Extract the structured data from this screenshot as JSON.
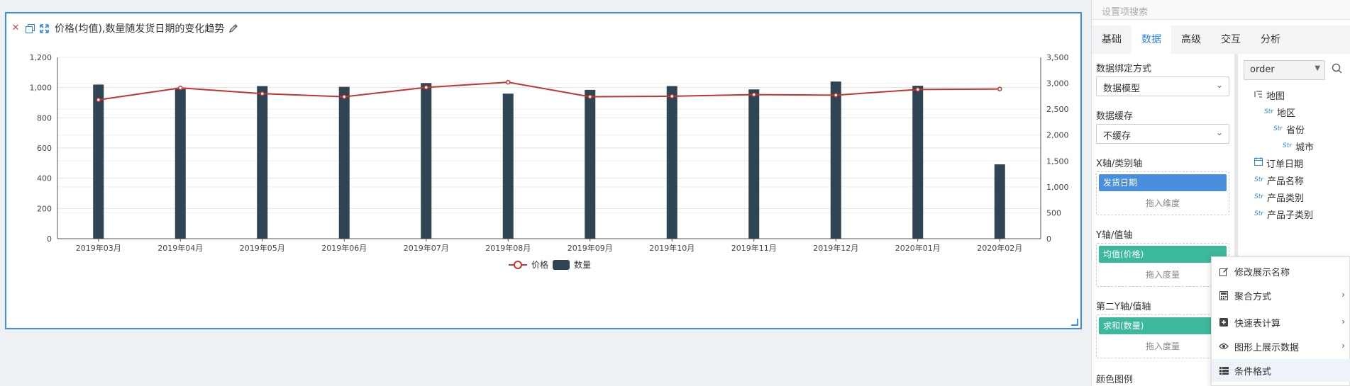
{
  "widget": {
    "title": "价格(均值),数量随发货日期的变化趋势",
    "icons": [
      "close-icon",
      "copy-icon",
      "expand-icon",
      "edit-icon"
    ]
  },
  "chart_data": {
    "type": "bar",
    "title": "价格(均值),数量随发货日期的变化趋势",
    "categories": [
      "2019年03月",
      "2019年04月",
      "2019年05月",
      "2019年06月",
      "2019年07月",
      "2019年08月",
      "2019年09月",
      "2019年10月",
      "2019年11月",
      "2019年12月",
      "2020年01月",
      "2020年02月"
    ],
    "series": [
      {
        "name": "数量",
        "type": "bar",
        "axis": "left",
        "color": "#2f4554",
        "values": [
          1020,
          990,
          1010,
          1005,
          1030,
          960,
          985,
          1010,
          988,
          1040,
          1012,
          492
        ]
      },
      {
        "name": "价格",
        "type": "line",
        "axis": "right",
        "color": "#c23531",
        "values": [
          2680,
          2910,
          2800,
          2740,
          2920,
          3020,
          2740,
          2750,
          2780,
          2770,
          2880,
          2890
        ]
      }
    ],
    "y_left": {
      "min": 0,
      "max": 1200,
      "ticks": [
        "0",
        "200",
        "400",
        "600",
        "800",
        "1,000",
        "1,200"
      ]
    },
    "y_right": {
      "min": 0,
      "max": 3500,
      "ticks": [
        "0",
        "500",
        "1,000",
        "1,500",
        "2,000",
        "2,500",
        "3,000",
        "3,500"
      ]
    },
    "legend": {
      "placement": "bottom-center",
      "items": [
        "价格",
        "数量"
      ]
    },
    "grid": true
  },
  "panel": {
    "search_placeholder": "设置项搜索",
    "tabs": [
      "基础",
      "数据",
      "高级",
      "交互",
      "分析"
    ],
    "active_tab": "数据",
    "binding_label": "数据绑定方式",
    "binding_value": "数据模型",
    "cache_label": "数据缓存",
    "cache_value": "不缓存",
    "x_axis_label": "X轴/类别轴",
    "x_axis_chip": "发货日期",
    "x_axis_hint": "拖入维度",
    "y_axis_label": "Y轴/值轴",
    "y_axis_chip": "均值(价格)",
    "y_axis_hint": "拖入度量",
    "y2_axis_label": "第二Y轴/值轴",
    "y2_axis_chip": "求和(数量)",
    "y2_axis_hint": "拖入度量",
    "color_legend_label": "颜色图例",
    "datasource": "order",
    "tree": [
      {
        "label": "地图",
        "type": "hierarchy",
        "indent": 0
      },
      {
        "label": "地区",
        "type": "Str",
        "indent": 1
      },
      {
        "label": "省份",
        "type": "Str",
        "indent": 2
      },
      {
        "label": "城市",
        "type": "Str",
        "indent": 3
      },
      {
        "label": "订单日期",
        "type": "date",
        "indent": 0
      },
      {
        "label": "产品名称",
        "type": "Str",
        "indent": 0
      },
      {
        "label": "产品类别",
        "type": "Str",
        "indent": 0
      },
      {
        "label": "产品子类别",
        "type": "Str",
        "indent": 0
      }
    ]
  },
  "context_menu": {
    "items": [
      {
        "label": "修改展示名称",
        "icon": "edit-icon",
        "submenu": false
      },
      {
        "label": "聚合方式",
        "icon": "calculator-icon",
        "submenu": true
      },
      {
        "label": "快速表计算",
        "icon": "plus-square-icon",
        "submenu": true
      },
      {
        "label": "图形上展示数据",
        "icon": "eye-icon",
        "submenu": true
      },
      {
        "label": "条件格式",
        "icon": "list-icon",
        "submenu": false,
        "highlighted": true
      }
    ]
  }
}
